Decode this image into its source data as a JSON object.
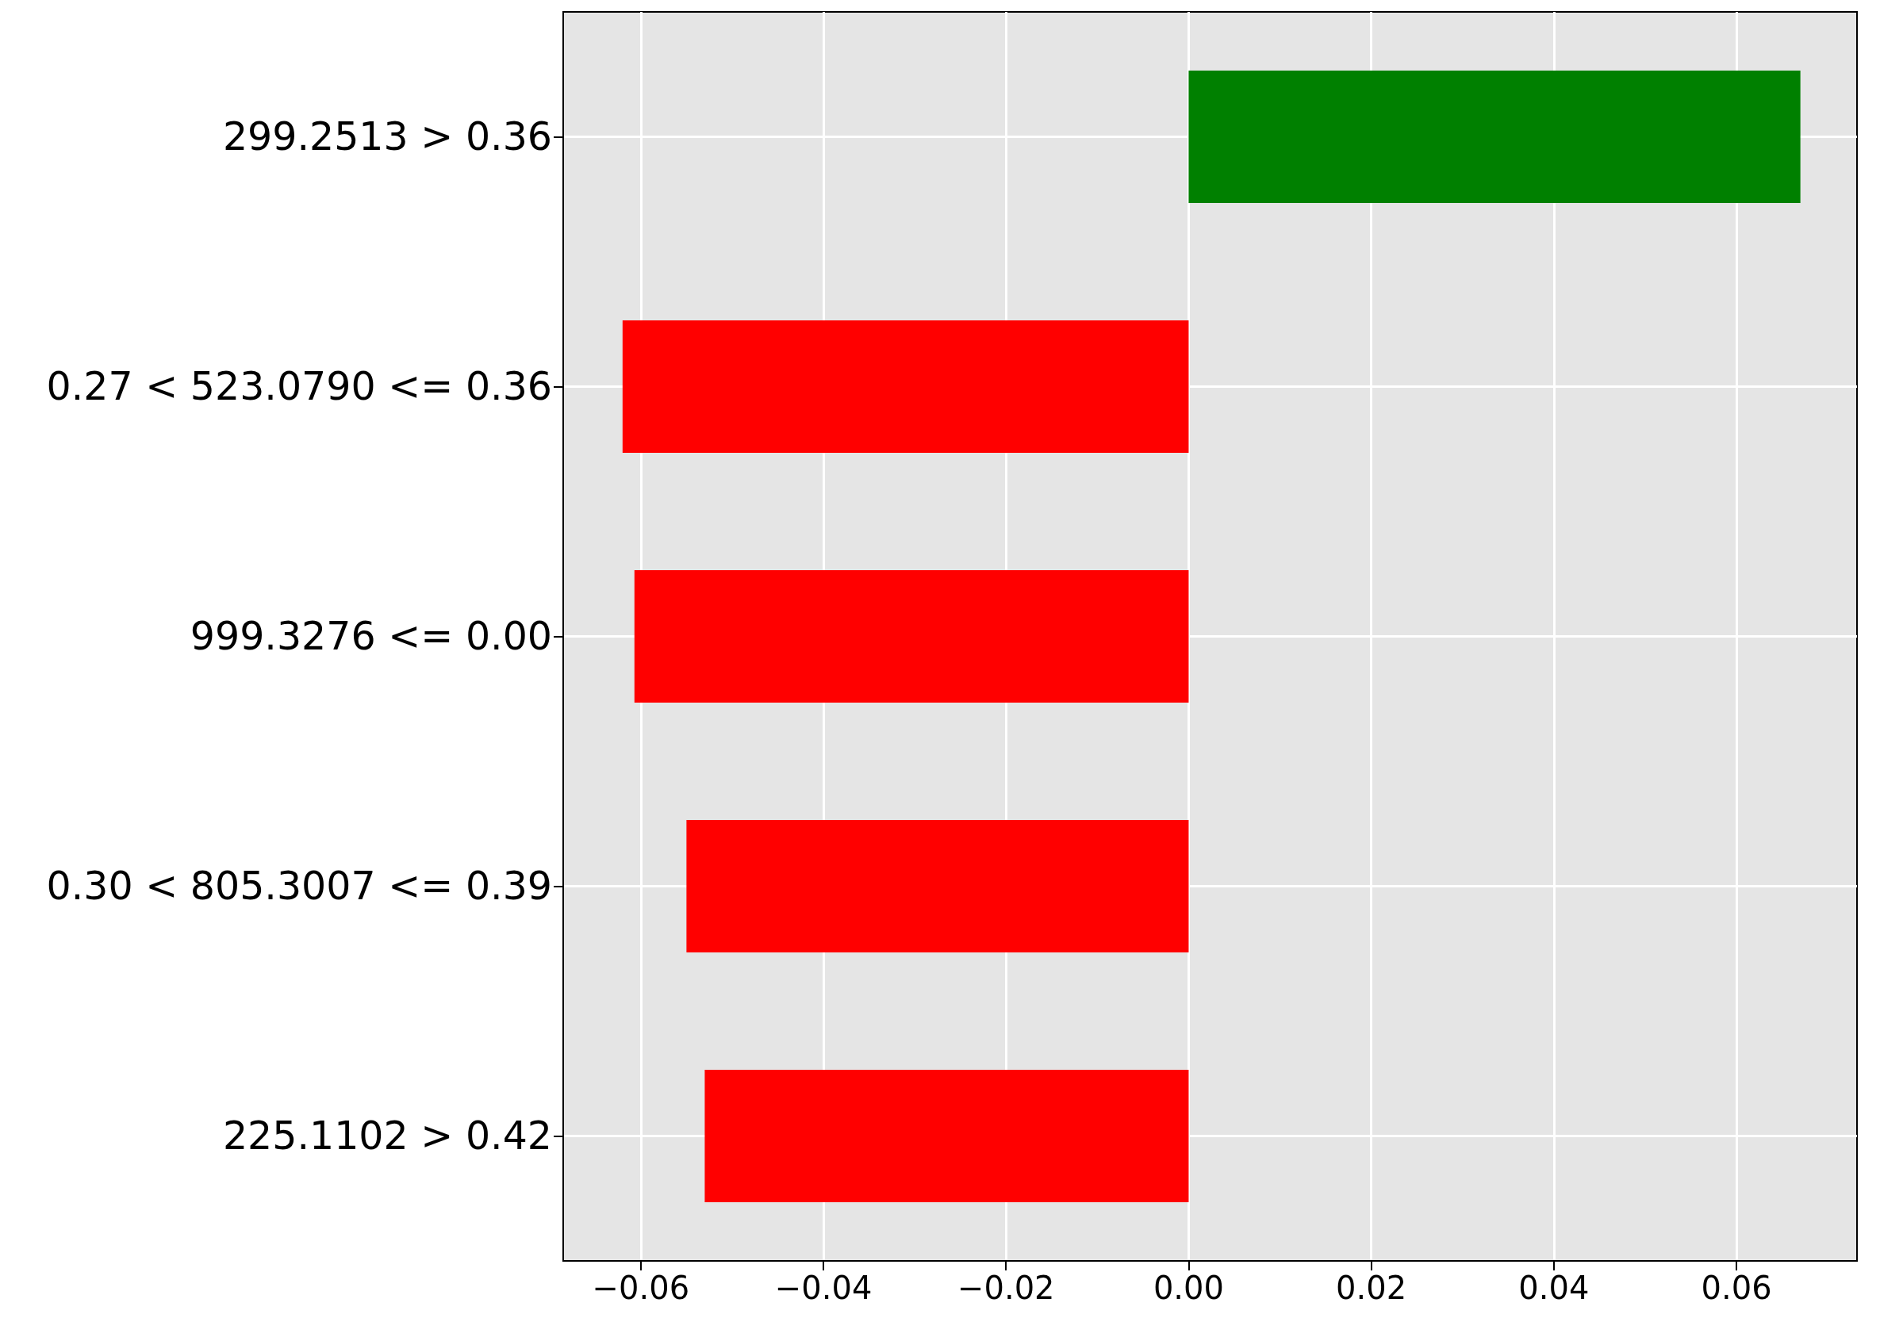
{
  "chart_data": {
    "type": "bar",
    "orientation": "horizontal",
    "categories": [
      "299.2513 > 0.36",
      "0.27 < 523.0790 <= 0.36",
      "999.3276 <= 0.00",
      "0.30 < 805.3007 <= 0.39",
      "225.1102 > 0.42"
    ],
    "values": [
      0.067,
      -0.062,
      -0.0607,
      -0.055,
      -0.053
    ],
    "colors": [
      "#008000",
      "#ff0000",
      "#ff0000",
      "#ff0000",
      "#ff0000"
    ],
    "xlim": [
      -0.0685,
      0.0732
    ],
    "xticks": [
      {
        "value": -0.06,
        "label": "−0.06"
      },
      {
        "value": -0.04,
        "label": "−0.04"
      },
      {
        "value": -0.02,
        "label": "−0.02"
      },
      {
        "value": 0,
        "label": "0.00"
      },
      {
        "value": 0.02,
        "label": "0.02"
      },
      {
        "value": 0.04,
        "label": "0.04"
      },
      {
        "value": 0.06,
        "label": "0.06"
      }
    ],
    "grid": true
  }
}
